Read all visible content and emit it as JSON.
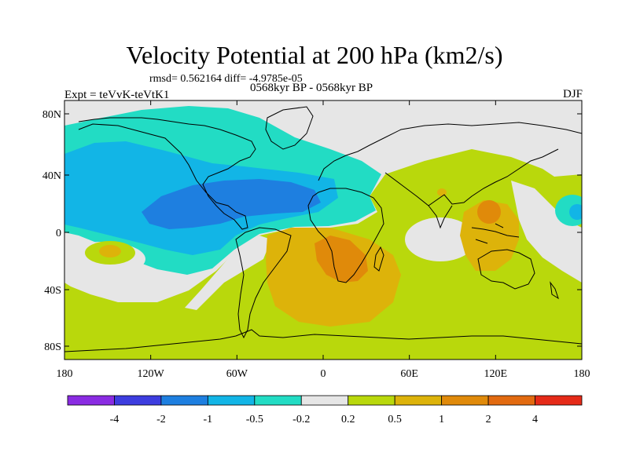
{
  "title": "Velocity Potential at 200 hPa (km2/s)",
  "stats": "rmsd= 0.562164 diff= -4.9785e-05",
  "experiment": "Expt = teVvK-teVtK1",
  "period": "0568kyr BP - 0568kyr BP",
  "season": "DJF",
  "lat_ticks": [
    {
      "label": "80N"
    },
    {
      "label": "40N"
    },
    {
      "label": "0"
    },
    {
      "label": "40S"
    },
    {
      "label": "80S"
    }
  ],
  "lon_ticks": [
    {
      "label": "180"
    },
    {
      "label": "120W"
    },
    {
      "label": "60W"
    },
    {
      "label": "0"
    },
    {
      "label": "60E"
    },
    {
      "label": "120E"
    },
    {
      "label": "180"
    }
  ],
  "colorbar": {
    "colors": [
      "#8a2be2",
      "#3d3ddf",
      "#1e7fe0",
      "#12b5e6",
      "#22dcc4",
      "#e6e6e6",
      "#b9d80c",
      "#ddb30a",
      "#e08a0a",
      "#e26a10",
      "#e52a18"
    ],
    "levels": [
      "-4",
      "-2",
      "-1",
      "-0.5",
      "-0.2",
      "0.2",
      "0.5",
      "1",
      "2",
      "4"
    ]
  },
  "fill_colors": {
    "green": "#b9d80c",
    "gray": "#e6e6e6",
    "cyan": "#22dcc4",
    "lightblue": "#12b5e6",
    "blue": "#1e7fe0",
    "yellow": "#ddb30a",
    "orange": "#e08a0a"
  }
}
